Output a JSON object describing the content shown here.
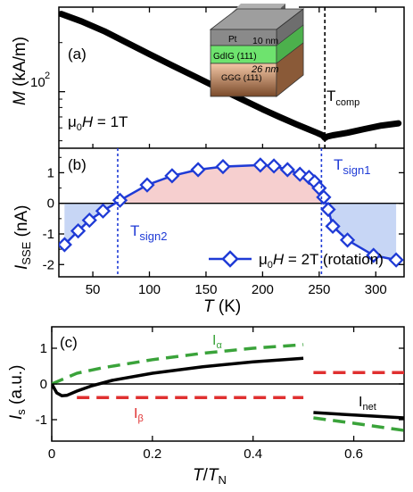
{
  "chart_data": [
    {
      "panel": "(a)",
      "type": "line",
      "ylabel": "M (kA/m)",
      "yscale": "log",
      "y_tick_label": "10",
      "y_tick_exponent": "2",
      "xlim": [
        20,
        325
      ],
      "field_label": "μ0H = 1T",
      "annotations": {
        "t_comp": "Tcomp",
        "t_comp_x": 255
      },
      "inset_layers": [
        "Pt",
        "GdIG (111)",
        "GGG (111)"
      ],
      "inset_thickness": [
        "10 nm",
        "26 nm"
      ],
      "series": [
        {
          "name": "M",
          "color": "#000000",
          "x": [
            22,
            40,
            60,
            80,
            100,
            120,
            140,
            160,
            180,
            200,
            215,
            230,
            240,
            248,
            253,
            255,
            257,
            262,
            275,
            290,
            305,
            320
          ],
          "y": [
            300,
            270,
            235,
            200,
            170,
            145,
            124,
            106,
            91,
            78,
            70,
            63,
            59,
            56,
            54,
            52,
            53,
            54,
            56,
            59,
            62,
            64
          ]
        }
      ]
    },
    {
      "panel": "(b)",
      "type": "line",
      "xlabel": "T (K)",
      "ylabel": "ISSE (nA)",
      "xlim": [
        20,
        325
      ],
      "ylim": [
        -2.4,
        1.8
      ],
      "x_ticks": [
        50,
        100,
        150,
        200,
        250,
        300
      ],
      "y_ticks": [
        -2,
        -1,
        0,
        1
      ],
      "annotations": {
        "t_sign1": "Tsign1",
        "t_sign1_x": 252,
        "t_sign2": "Tsign2",
        "t_sign2_x": 72
      },
      "series": [
        {
          "name": "μ0H = 2T (rotation)",
          "color": "#1f3bd6",
          "marker": "diamond",
          "x": [
            25,
            37,
            47,
            59,
            74,
            98,
            120,
            143,
            165,
            198,
            210,
            222,
            233,
            241,
            246,
            250,
            254,
            258,
            262,
            275,
            298,
            318
          ],
          "y": [
            -1.35,
            -0.9,
            -0.55,
            -0.25,
            0.1,
            0.6,
            0.9,
            1.1,
            1.2,
            1.25,
            1.22,
            1.1,
            0.95,
            0.85,
            0.7,
            0.5,
            0.2,
            -0.2,
            -0.75,
            -1.2,
            -1.7,
            -1.85
          ]
        }
      ]
    },
    {
      "panel": "(c)",
      "type": "line",
      "xlabel": "T/TN",
      "ylabel": "Is (a.u.)",
      "xlim": [
        0,
        0.7
      ],
      "ylim": [
        -1.6,
        1.6
      ],
      "x_ticks": [
        0,
        0.2,
        0.4,
        0.6
      ],
      "y_ticks": [
        -1,
        0,
        1
      ],
      "series": [
        {
          "name": "Iα",
          "color": "#3aa33a",
          "style": "dashed",
          "segments": [
            {
              "x": [
                0.0,
                0.02,
                0.05,
                0.1,
                0.2,
                0.3,
                0.4,
                0.5
              ],
              "y": [
                0.0,
                0.12,
                0.3,
                0.45,
                0.68,
                0.86,
                1.0,
                1.1
              ]
            },
            {
              "x": [
                0.52,
                0.6,
                0.7
              ],
              "y": [
                -0.95,
                -1.1,
                -1.3
              ]
            }
          ]
        },
        {
          "name": "Iβ",
          "color": "#e03030",
          "style": "dashed",
          "segments": [
            {
              "x": [
                0.05,
                0.5
              ],
              "y": [
                -0.38,
                -0.38
              ]
            },
            {
              "x": [
                0.52,
                0.7
              ],
              "y": [
                0.32,
                0.32
              ]
            }
          ]
        },
        {
          "name": "Inet",
          "color": "#000000",
          "style": "solid",
          "segments": [
            {
              "x": [
                0.0,
                0.01,
                0.02,
                0.03,
                0.05,
                0.08,
                0.12,
                0.2,
                0.3,
                0.4,
                0.5
              ],
              "y": [
                0.0,
                -0.25,
                -0.33,
                -0.32,
                -0.2,
                -0.05,
                0.1,
                0.3,
                0.48,
                0.62,
                0.72
              ]
            },
            {
              "x": [
                0.52,
                0.6,
                0.7
              ],
              "y": [
                -0.8,
                -0.87,
                -0.95
              ]
            }
          ]
        }
      ],
      "labels": {
        "i_alpha": "I",
        "i_alpha_sub": "α",
        "i_beta": "I",
        "i_beta_sub": "β",
        "i_net": "I",
        "i_net_sub": "net"
      }
    }
  ],
  "text": {
    "panel_a": "(a)",
    "panel_b": "(b)",
    "panel_c": "(c)",
    "m_label_m": "M",
    "m_label_unit": " (kA/m)",
    "a_y_tick_base": "10",
    "a_y_tick_exp": "2",
    "mu": "μ",
    "zero_sub": "0",
    "h_italic": "H",
    "field_a_val": " = 1T",
    "field_b_val": " = 2T (rotation)",
    "tcomp_t": "T",
    "tcomp_sub": "comp",
    "tsign1_t": "T",
    "tsign1_sub": "sign1",
    "tsign2_t": "T",
    "tsign2_sub": "sign2",
    "b_ylabel_i": "I",
    "b_ylabel_sub": "SSE",
    "b_ylabel_unit": " (nA)",
    "b_xlabel_t": "T",
    "b_xlabel_unit": " (K)",
    "c_ylabel_i": "I",
    "c_ylabel_sub": "s",
    "c_ylabel_unit": " (a.u.)",
    "c_xlabel_t": "T",
    "c_xlabel_slash": "/",
    "c_xlabel_tn": "T",
    "c_xlabel_n": "N",
    "inset_pt": "Pt",
    "inset_gdig": "GdIG (111)",
    "inset_ggg": "GGG (111)",
    "inset_10nm": "10 nm",
    "inset_26nm": "26 nm"
  }
}
